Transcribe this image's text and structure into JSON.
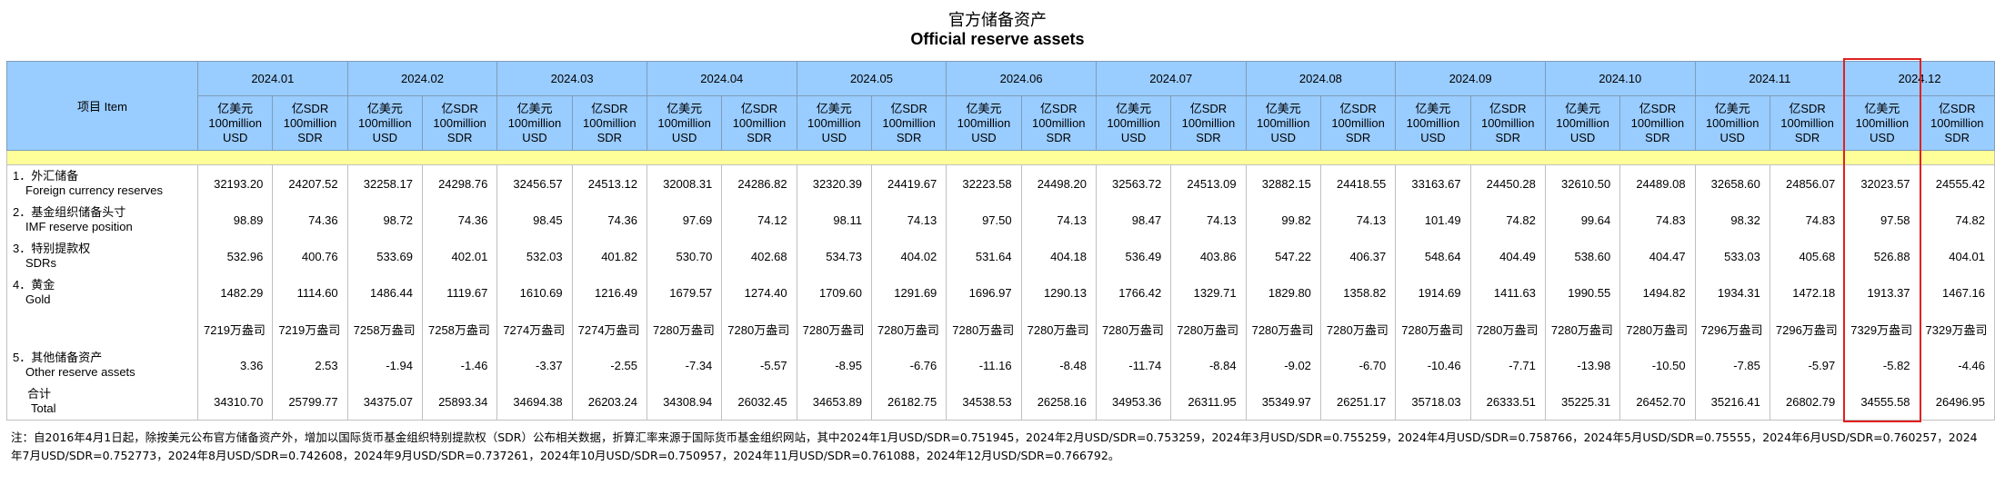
{
  "title": "官方储备资产",
  "subtitle": "Official reserve assets",
  "table": {
    "item_header": "项目  Item",
    "months": [
      "2024.01",
      "2024.02",
      "2024.03",
      "2024.04",
      "2024.05",
      "2024.06",
      "2024.07",
      "2024.08",
      "2024.09",
      "2024.10",
      "2024.11",
      "2024.12"
    ],
    "units": [
      [
        "亿美元",
        "100million",
        "USD"
      ],
      [
        "亿SDR",
        "100million",
        "SDR"
      ]
    ],
    "rows": [
      {
        "label_cn": "1．外汇储备",
        "label_en": "Foreign currency reserves",
        "values": [
          "32193.20",
          "24207.52",
          "32258.17",
          "24298.76",
          "32456.57",
          "24513.12",
          "32008.31",
          "24286.82",
          "32320.39",
          "24419.67",
          "32223.58",
          "24498.20",
          "32563.72",
          "24513.09",
          "32882.15",
          "24418.55",
          "33163.67",
          "24450.28",
          "32610.50",
          "24489.08",
          "32658.60",
          "24856.07",
          "32023.57",
          "24555.42"
        ]
      },
      {
        "label_cn": "2．基金组织储备头寸",
        "label_en": "IMF reserve position",
        "values": [
          "98.89",
          "74.36",
          "98.72",
          "74.36",
          "98.45",
          "74.36",
          "97.69",
          "74.12",
          "98.11",
          "74.13",
          "97.50",
          "74.13",
          "98.47",
          "74.13",
          "99.82",
          "74.13",
          "101.49",
          "74.82",
          "99.64",
          "74.83",
          "98.32",
          "74.83",
          "97.58",
          "74.82"
        ]
      },
      {
        "label_cn": "3．特别提款权",
        "label_en": "SDRs",
        "values": [
          "532.96",
          "400.76",
          "533.69",
          "402.01",
          "532.03",
          "401.82",
          "530.70",
          "402.68",
          "534.73",
          "404.02",
          "531.64",
          "404.18",
          "536.49",
          "403.86",
          "547.22",
          "406.37",
          "548.64",
          "404.49",
          "538.60",
          "404.47",
          "533.03",
          "405.68",
          "526.88",
          "404.01"
        ]
      },
      {
        "label_cn": "4．黄金",
        "label_en": "Gold",
        "values": [
          "1482.29",
          "1114.60",
          "1486.44",
          "1119.67",
          "1610.69",
          "1216.49",
          "1679.57",
          "1274.40",
          "1709.60",
          "1291.69",
          "1696.97",
          "1290.13",
          "1766.42",
          "1329.71",
          "1829.80",
          "1358.82",
          "1914.69",
          "1411.63",
          "1990.55",
          "1494.82",
          "1934.31",
          "1472.18",
          "1913.37",
          "1467.16"
        ]
      },
      {
        "values": [
          "7219万盎司",
          "7219万盎司",
          "7258万盎司",
          "7258万盎司",
          "7274万盎司",
          "7274万盎司",
          "7280万盎司",
          "7280万盎司",
          "7280万盎司",
          "7280万盎司",
          "7280万盎司",
          "7280万盎司",
          "7280万盎司",
          "7280万盎司",
          "7280万盎司",
          "7280万盎司",
          "7280万盎司",
          "7280万盎司",
          "7280万盎司",
          "7280万盎司",
          "7296万盎司",
          "7296万盎司",
          "7329万盎司",
          "7329万盎司"
        ]
      },
      {
        "label_cn": "5．其他储备资产",
        "label_en": "Other reserve assets",
        "values": [
          "3.36",
          "2.53",
          "-1.94",
          "-1.46",
          "-3.37",
          "-2.55",
          "-7.34",
          "-5.57",
          "-8.95",
          "-6.76",
          "-11.16",
          "-8.48",
          "-11.74",
          "-8.84",
          "-9.02",
          "-6.70",
          "-10.46",
          "-7.71",
          "-13.98",
          "-10.50",
          "-7.85",
          "-5.97",
          "-5.82",
          "-4.46"
        ]
      },
      {
        "label_cn": "合计",
        "label_en": "Total",
        "values": [
          "34310.70",
          "25799.77",
          "34375.07",
          "25893.34",
          "34694.38",
          "26203.24",
          "34308.94",
          "26032.45",
          "34653.89",
          "26182.75",
          "34538.53",
          "26258.16",
          "34953.36",
          "26311.95",
          "35349.97",
          "26251.17",
          "35718.03",
          "26333.51",
          "35225.31",
          "26452.70",
          "35216.41",
          "26802.79",
          "34555.58",
          "26496.95"
        ]
      }
    ]
  },
  "note": "注：自2016年4月1日起，除按美元公布官方储备资产外，增加以国际货币基金组织特别提款权（SDR）公布相关数据，折算汇率来源于国际货币基金组织网站，其中2024年1月USD/SDR=0.751945，2024年2月USD/SDR=0.753259，2024年3月USD/SDR=0.755259，2024年4月USD/SDR=0.758766，2024年5月USD/SDR=0.75555，2024年6月USD/SDR=0.760257，2024年7月USD/SDR=0.752773，2024年8月USD/SDR=0.742608，2024年9月USD/SDR=0.737261，2024年10月USD/SDR=0.750957，2024年11月USD/SDR=0.761088，2024年12月USD/SDR=0.766792。"
}
